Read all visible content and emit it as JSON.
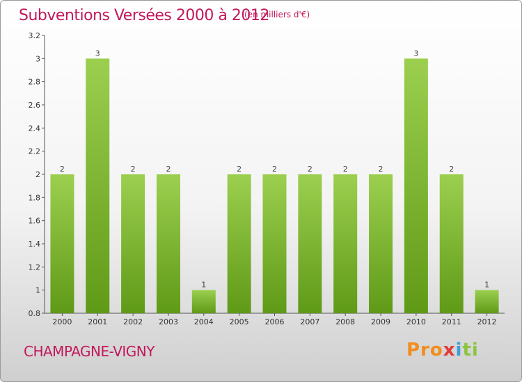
{
  "title": "Subventions Versées 2000 à 2012",
  "unit_note": "(en milliers d'€)",
  "commune": "CHAMPAGNE-VIGNY",
  "logo": {
    "p1": "Pro",
    "p2": "x",
    "p3": "i",
    "p4": "ti"
  },
  "colors": {
    "title": "#c2185b",
    "bar_light": "#9ccf4f",
    "bar_dark": "#5f9a17"
  },
  "chart_data": {
    "type": "bar",
    "categories": [
      "2000",
      "2001",
      "2002",
      "2003",
      "2004",
      "2005",
      "2006",
      "2007",
      "2008",
      "2009",
      "2010",
      "2011",
      "2012"
    ],
    "values": [
      2,
      3,
      2,
      2,
      1,
      2,
      2,
      2,
      2,
      2,
      3,
      2,
      1
    ],
    "ylim": [
      0.8,
      3.2
    ],
    "yticks": [
      "0.8",
      "1",
      "1.2",
      "1.4",
      "1.6",
      "1.8",
      "2",
      "2.2",
      "2.4",
      "2.6",
      "2.8",
      "3",
      "3.2"
    ],
    "grid": false
  }
}
